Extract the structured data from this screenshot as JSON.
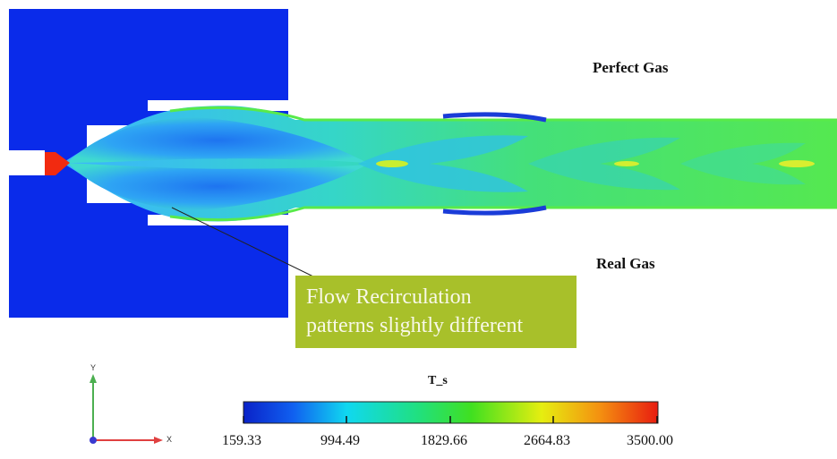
{
  "labels": {
    "perfect_gas": "Perfect Gas",
    "real_gas": "Real Gas"
  },
  "annotation": {
    "line1": "Flow Recirculation",
    "line2": "patterns slightly different"
  },
  "colorbar": {
    "title": "T_s",
    "ticks": [
      "159.33",
      "994.49",
      "1829.66",
      "2664.83",
      "3500.00"
    ],
    "min": 159.33,
    "max": 3500.0
  },
  "triad": {
    "y_label": "Y",
    "x_label": "X"
  },
  "colors": {
    "background_field": "#0a2bea",
    "jet_core": "#2fa0f0",
    "jet_edge": "#46e060",
    "inlet_hot": "#f22a10",
    "annotation_bg": "#a8c02a",
    "annotation_text": "#f8f8e8"
  }
}
